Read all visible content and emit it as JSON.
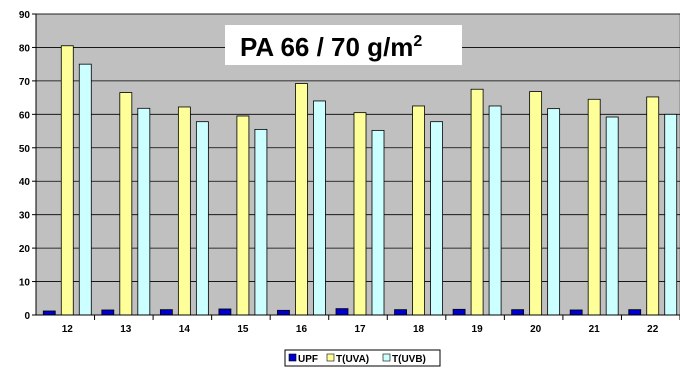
{
  "chart_data": {
    "type": "bar",
    "title": "PA 66 / 70 g/m",
    "title_sup": "2",
    "categories": [
      "12",
      "13",
      "14",
      "15",
      "16",
      "17",
      "18",
      "19",
      "20",
      "21",
      "22"
    ],
    "series": [
      {
        "name": "UPF",
        "color": "#0000cc",
        "values": [
          1.2,
          1.5,
          1.6,
          1.8,
          1.4,
          1.9,
          1.6,
          1.7,
          1.6,
          1.5,
          1.6
        ]
      },
      {
        "name": "T(UVA)",
        "color": "#ffff99",
        "values": [
          80.5,
          66.5,
          62.2,
          59.5,
          69.2,
          60.5,
          62.5,
          67.5,
          66.8,
          64.5,
          65.2
        ]
      },
      {
        "name": "T(UVB)",
        "color": "#ccffff",
        "values": [
          75.0,
          61.8,
          57.8,
          55.5,
          64.0,
          55.2,
          57.8,
          62.5,
          61.7,
          59.2,
          60.0
        ]
      }
    ],
    "ylim": [
      0,
      90
    ],
    "yticks": [
      "0",
      "10",
      "20",
      "30",
      "40",
      "50",
      "60",
      "70",
      "80",
      "90"
    ],
    "grid": true,
    "plot_background": "#c0c0c0",
    "legend_position": "bottom-center"
  }
}
